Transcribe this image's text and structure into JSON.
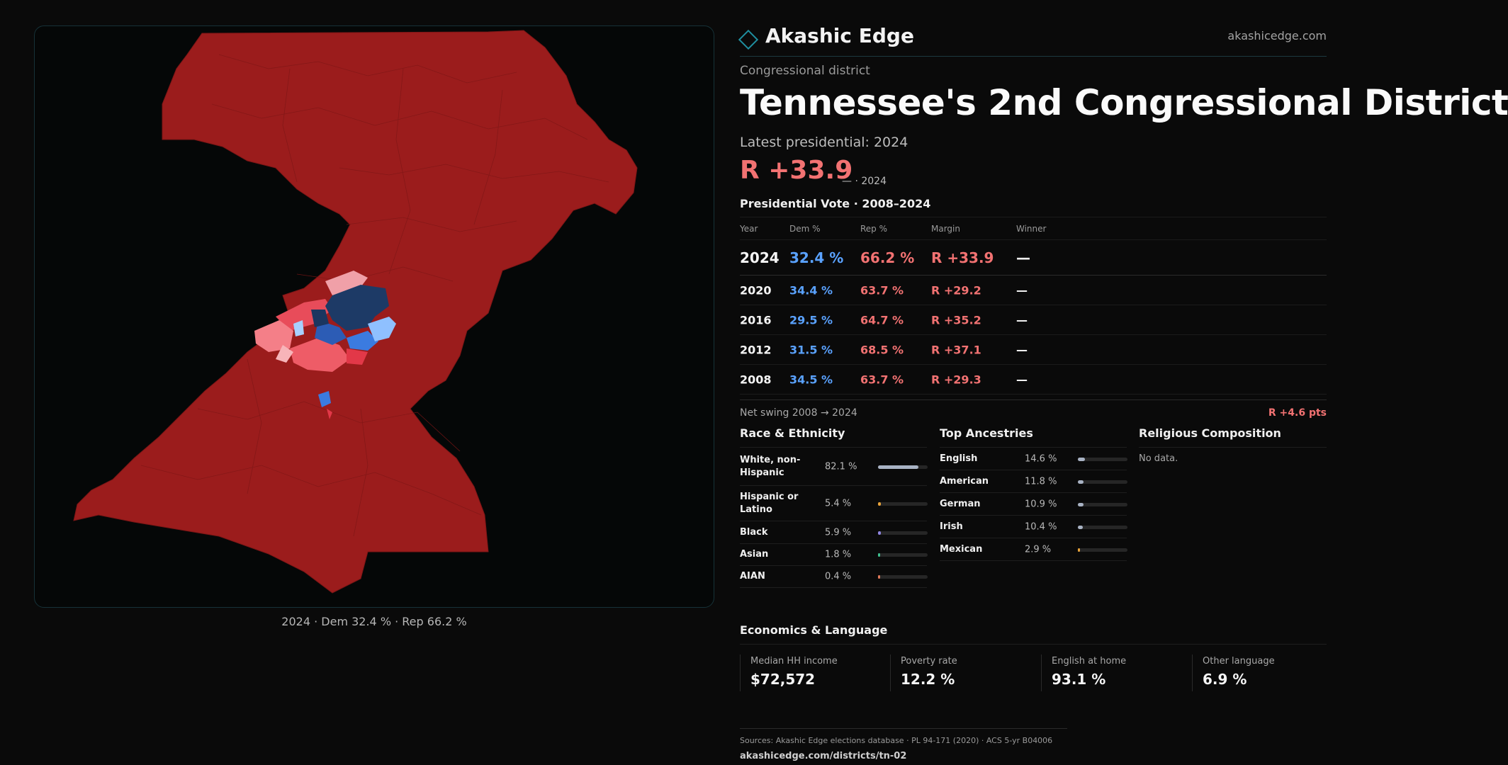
{
  "brand": {
    "name": "Akashic Edge",
    "site": "akashicedge.com"
  },
  "kicker": "Congressional district",
  "title": "Tennessee's  2nd Congressional District",
  "latest_label": "Latest presidential: 2024",
  "headline": {
    "margin": "R +33.9",
    "sub": "— · 2024"
  },
  "map": {
    "caption": "2024 · Dem 32.4 % · Rep 66.2 %"
  },
  "vote_table": {
    "title": "Presidential Vote · 2008–2024",
    "headers": {
      "year": "Year",
      "dem": "Dem %",
      "rep": "Rep %",
      "margin": "Margin",
      "winner": "Winner"
    },
    "rows": [
      {
        "year": "2024",
        "dem": "32.4 %",
        "rep": "66.2 %",
        "margin": "R +33.9",
        "winner": "—"
      },
      {
        "year": "2020",
        "dem": "34.4 %",
        "rep": "63.7 %",
        "margin": "R +29.2",
        "winner": "—"
      },
      {
        "year": "2016",
        "dem": "29.5 %",
        "rep": "64.7 %",
        "margin": "R +35.2",
        "winner": "—"
      },
      {
        "year": "2012",
        "dem": "31.5 %",
        "rep": "68.5 %",
        "margin": "R +37.1",
        "winner": "—"
      },
      {
        "year": "2008",
        "dem": "34.5 %",
        "rep": "63.7 %",
        "margin": "R +29.3",
        "winner": "—"
      }
    ]
  },
  "swing": {
    "label": "Net swing 2008 → 2024",
    "value": "R +4.6 pts"
  },
  "race": {
    "title": "Race & Ethnicity",
    "rows": [
      {
        "label": "White, non-Hispanic",
        "pct": "82.1 %",
        "value": 0.821,
        "color": "#a9b3c4"
      },
      {
        "label": "Hispanic or Latino",
        "pct": "5.4 %",
        "value": 0.054,
        "color": "#e8a33a"
      },
      {
        "label": "Black",
        "pct": "5.9 %",
        "value": 0.059,
        "color": "#8f85e0"
      },
      {
        "label": "Asian",
        "pct": "1.8 %",
        "value": 0.018,
        "color": "#3fbf8f"
      },
      {
        "label": "AIAN",
        "pct": "0.4 %",
        "value": 0.004,
        "color": "#e07a5a"
      }
    ]
  },
  "ancestry": {
    "title": "Top Ancestries",
    "rows": [
      {
        "label": "English",
        "pct": "14.6 %",
        "value": 0.146,
        "color": "#a9b3c4"
      },
      {
        "label": "American",
        "pct": "11.8 %",
        "value": 0.118,
        "color": "#a9b3c4"
      },
      {
        "label": "German",
        "pct": "10.9 %",
        "value": 0.109,
        "color": "#a9b3c4"
      },
      {
        "label": "Irish",
        "pct": "10.4 %",
        "value": 0.104,
        "color": "#a9b3c4"
      },
      {
        "label": "Mexican",
        "pct": "2.9 %",
        "value": 0.029,
        "color": "#e8a33a"
      }
    ]
  },
  "religion": {
    "title": "Religious Composition",
    "empty": "No data."
  },
  "economics": {
    "title": "Economics & Language",
    "cells": [
      {
        "label": "Median HH income",
        "value": "$72,572"
      },
      {
        "label": "Poverty rate",
        "value": "12.2 %"
      },
      {
        "label": "English at home",
        "value": "93.1 %"
      },
      {
        "label": "Other language",
        "value": "6.9 %"
      }
    ]
  },
  "sources": {
    "text": "Sources: Akashic Edge elections database · PL 94-171 (2020) · ACS 5-yr B04006",
    "url": "akashicedge.com/districts/tn-02"
  },
  "colors": {
    "rep": "#f27272",
    "dem": "#5aa2ff",
    "rep_fill": "#991b1b",
    "accent": "#1f8fa0"
  }
}
